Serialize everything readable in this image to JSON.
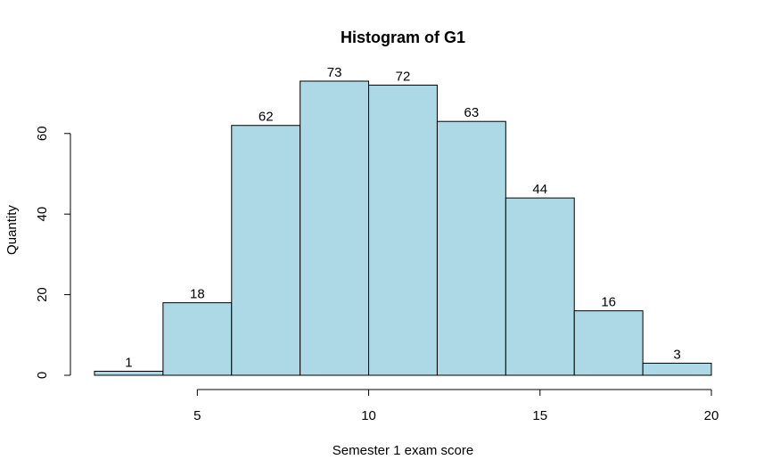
{
  "chart_data": {
    "type": "bar",
    "title": "Histogram of G1",
    "xlabel": "Semester 1 exam score",
    "ylabel": "Quantity",
    "bins": [
      {
        "start": 2,
        "end": 4,
        "value": 1
      },
      {
        "start": 4,
        "end": 6,
        "value": 18
      },
      {
        "start": 6,
        "end": 8,
        "value": 62
      },
      {
        "start": 8,
        "end": 10,
        "value": 73
      },
      {
        "start": 10,
        "end": 12,
        "value": 72
      },
      {
        "start": 12,
        "end": 14,
        "value": 63
      },
      {
        "start": 14,
        "end": 16,
        "value": 44
      },
      {
        "start": 16,
        "end": 18,
        "value": 16
      },
      {
        "start": 18,
        "end": 20,
        "value": 3
      }
    ],
    "xticks": [
      5,
      10,
      15,
      20
    ],
    "yticks": [
      0,
      20,
      40,
      60
    ],
    "xlim": [
      2,
      20
    ],
    "ylim": [
      0,
      73
    ],
    "bar_color": "#ADD8E6",
    "grid": false
  }
}
